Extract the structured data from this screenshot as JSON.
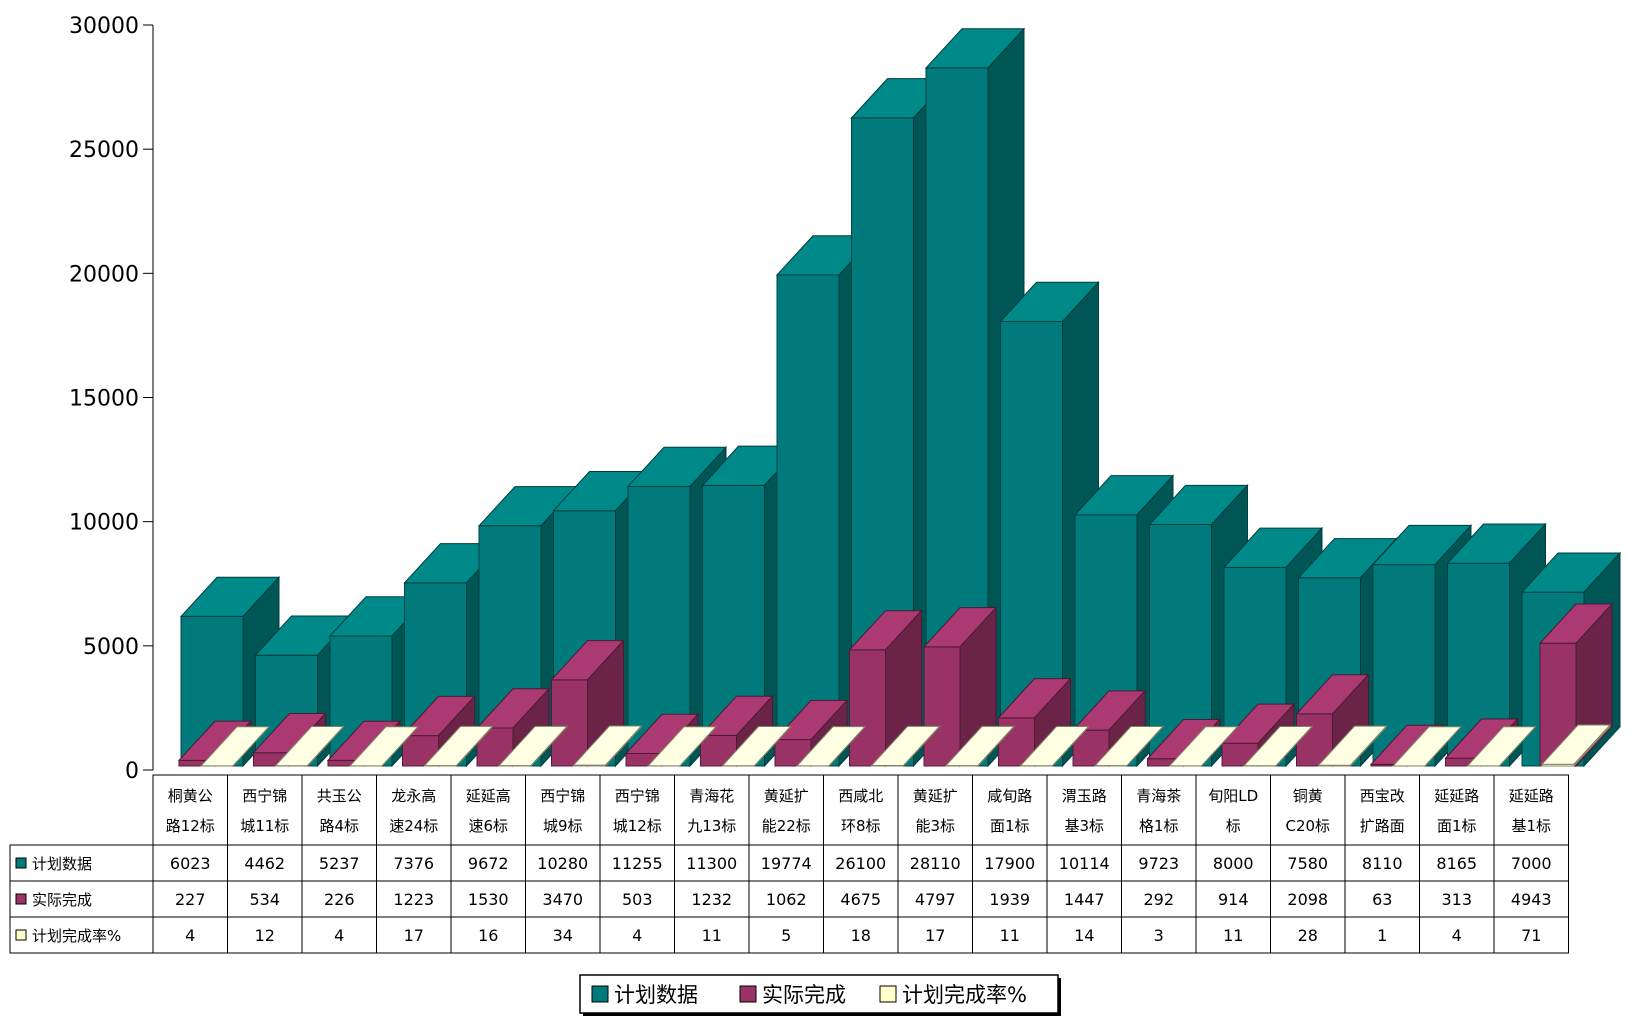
{
  "chart_data": {
    "type": "bar",
    "ylim": [
      0,
      30000
    ],
    "yticks": [
      0,
      5000,
      10000,
      15000,
      20000,
      25000,
      30000
    ],
    "categories": [
      [
        "桐黄公",
        "路12标"
      ],
      [
        "西宁锦",
        "城11标"
      ],
      [
        "共玉公",
        "路4标"
      ],
      [
        "龙永高",
        "速24标"
      ],
      [
        "延延高",
        "速6标"
      ],
      [
        "西宁锦",
        "城9标"
      ],
      [
        "西宁锦",
        "城12标"
      ],
      [
        "青海花",
        "九13标"
      ],
      [
        "黄延扩",
        "能22标"
      ],
      [
        "西咸北",
        "环8标"
      ],
      [
        "黄延扩",
        "能3标"
      ],
      [
        "咸旬路",
        "面1标"
      ],
      [
        "渭玉路",
        "基3标"
      ],
      [
        "青海茶",
        "格1标"
      ],
      [
        "旬阳LD",
        "标"
      ],
      [
        "铜黄",
        "C20标"
      ],
      [
        "西宝改",
        "扩路面"
      ],
      [
        "延延路",
        "面1标"
      ],
      [
        "延延路",
        "基1标"
      ]
    ],
    "series": [
      {
        "name": "计划数据",
        "values": [
          6023,
          4462,
          5237,
          7376,
          9672,
          10280,
          11255,
          11300,
          19774,
          26100,
          28110,
          17900,
          10114,
          9723,
          8000,
          7580,
          8110,
          8165,
          7000
        ]
      },
      {
        "name": "实际完成",
        "values": [
          227,
          534,
          226,
          1223,
          1530,
          3470,
          503,
          1232,
          1062,
          4675,
          4797,
          1939,
          1447,
          292,
          914,
          2098,
          63,
          313,
          4943
        ]
      },
      {
        "name": "计划完成率%",
        "values": [
          4,
          12,
          4,
          17,
          16,
          34,
          4,
          11,
          5,
          18,
          17,
          11,
          14,
          3,
          11,
          28,
          1,
          4,
          71
        ]
      }
    ],
    "legend_position": "bottom",
    "grid": false
  },
  "colors": {
    "plan": "#007a7a",
    "actual": "#993366",
    "rate": "#ffffcc"
  }
}
